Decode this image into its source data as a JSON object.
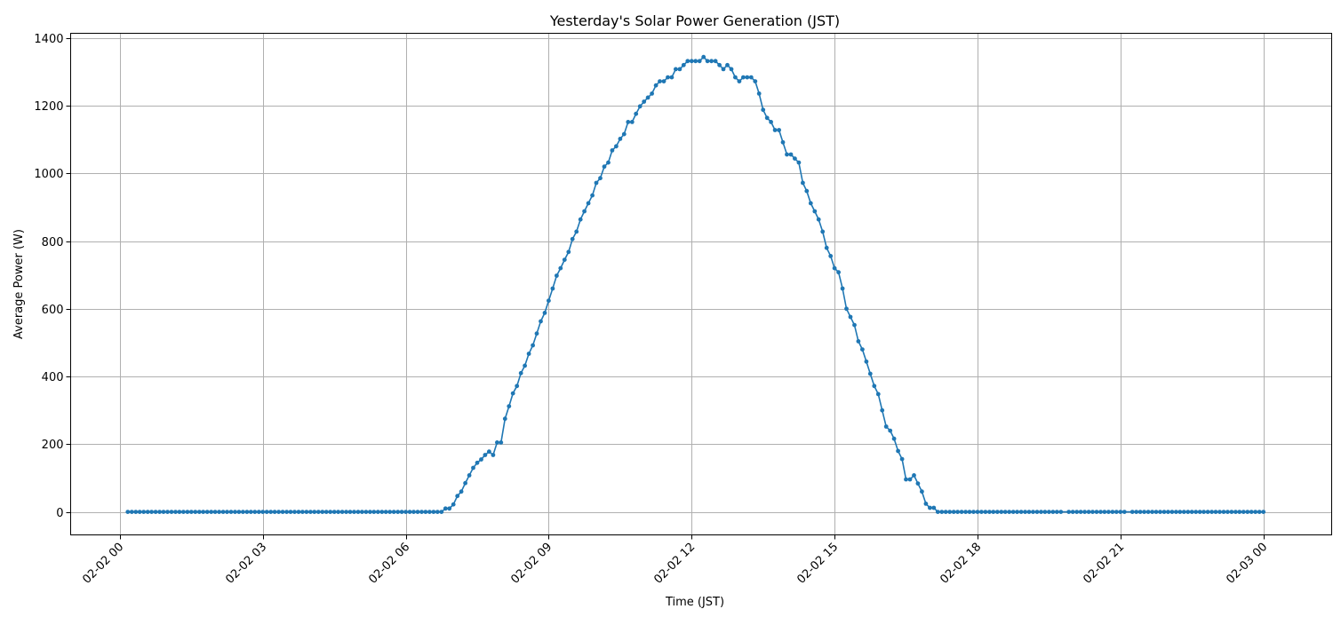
{
  "chart_data": {
    "type": "line",
    "title": "Yesterday's Solar Power Generation (JST)",
    "xlabel": "Time (JST)",
    "ylabel": "Average Power (W)",
    "xlim": [
      "02-01 22:58",
      "02-03 01:26"
    ],
    "ylim": [
      -68,
      1414
    ],
    "grid": true,
    "line_color": "#1f77b4",
    "marker": "circle",
    "x_ticks": [
      "02-02 00",
      "02-02 03",
      "02-02 06",
      "02-02 09",
      "02-02 12",
      "02-02 15",
      "02-02 18",
      "02-02 21",
      "02-03 00"
    ],
    "y_ticks": [
      0,
      200,
      400,
      600,
      800,
      1000,
      1200,
      1400
    ],
    "x": [
      "02-02 00:10",
      "02-02 00:15",
      "02-02 00:20",
      "02-02 00:25",
      "02-02 00:30",
      "02-02 00:35",
      "02-02 00:40",
      "02-02 00:45",
      "02-02 00:50",
      "02-02 00:55",
      "02-02 01:00",
      "02-02 01:05",
      "02-02 01:10",
      "02-02 01:15",
      "02-02 01:20",
      "02-02 01:25",
      "02-02 01:30",
      "02-02 01:35",
      "02-02 01:40",
      "02-02 01:45",
      "02-02 01:50",
      "02-02 01:55",
      "02-02 02:00",
      "02-02 02:05",
      "02-02 02:10",
      "02-02 02:15",
      "02-02 02:20",
      "02-02 02:25",
      "02-02 02:30",
      "02-02 02:35",
      "02-02 02:40",
      "02-02 02:45",
      "02-02 02:50",
      "02-02 02:55",
      "02-02 03:00",
      "02-02 03:05",
      "02-02 03:10",
      "02-02 03:15",
      "02-02 03:20",
      "02-02 03:25",
      "02-02 03:30",
      "02-02 03:35",
      "02-02 03:40",
      "02-02 03:45",
      "02-02 03:50",
      "02-02 03:55",
      "02-02 04:00",
      "02-02 04:05",
      "02-02 04:10",
      "02-02 04:15",
      "02-02 04:20",
      "02-02 04:25",
      "02-02 04:30",
      "02-02 04:35",
      "02-02 04:40",
      "02-02 04:45",
      "02-02 04:50",
      "02-02 04:55",
      "02-02 05:00",
      "02-02 05:05",
      "02-02 05:10",
      "02-02 05:15",
      "02-02 05:20",
      "02-02 05:25",
      "02-02 05:30",
      "02-02 05:35",
      "02-02 05:40",
      "02-02 05:45",
      "02-02 05:50",
      "02-02 05:55",
      "02-02 06:00",
      "02-02 06:05",
      "02-02 06:10",
      "02-02 06:15",
      "02-02 06:20",
      "02-02 06:25",
      "02-02 06:30",
      "02-02 06:35",
      "02-02 06:40",
      "02-02 06:45",
      "02-02 06:50",
      "02-02 06:55",
      "02-02 07:00",
      "02-02 07:05",
      "02-02 07:10",
      "02-02 07:15",
      "02-02 07:20",
      "02-02 07:25",
      "02-02 07:30",
      "02-02 07:35",
      "02-02 07:40",
      "02-02 07:45",
      "02-02 07:50",
      "02-02 07:55",
      "02-02 08:00",
      "02-02 08:05",
      "02-02 08:10",
      "02-02 08:15",
      "02-02 08:20",
      "02-02 08:25",
      "02-02 08:30",
      "02-02 08:35",
      "02-02 08:40",
      "02-02 08:45",
      "02-02 08:50",
      "02-02 08:55",
      "02-02 09:00",
      "02-02 09:05",
      "02-02 09:10",
      "02-02 09:15",
      "02-02 09:20",
      "02-02 09:25",
      "02-02 09:30",
      "02-02 09:35",
      "02-02 09:40",
      "02-02 09:45",
      "02-02 09:50",
      "02-02 09:55",
      "02-02 10:00",
      "02-02 10:05",
      "02-02 10:10",
      "02-02 10:15",
      "02-02 10:20",
      "02-02 10:25",
      "02-02 10:30",
      "02-02 10:35",
      "02-02 10:40",
      "02-02 10:45",
      "02-02 10:50",
      "02-02 10:55",
      "02-02 11:00",
      "02-02 11:05",
      "02-02 11:10",
      "02-02 11:15",
      "02-02 11:20",
      "02-02 11:25",
      "02-02 11:30",
      "02-02 11:35",
      "02-02 11:40",
      "02-02 11:45",
      "02-02 11:50",
      "02-02 11:55",
      "02-02 12:00",
      "02-02 12:05",
      "02-02 12:10",
      "02-02 12:15",
      "02-02 12:20",
      "02-02 12:25",
      "02-02 12:30",
      "02-02 12:35",
      "02-02 12:40",
      "02-02 12:45",
      "02-02 12:50",
      "02-02 12:55",
      "02-02 13:00",
      "02-02 13:05",
      "02-02 13:10",
      "02-02 13:15",
      "02-02 13:20",
      "02-02 13:25",
      "02-02 13:30",
      "02-02 13:35",
      "02-02 13:40",
      "02-02 13:45",
      "02-02 13:50",
      "02-02 13:55",
      "02-02 14:00",
      "02-02 14:05",
      "02-02 14:10",
      "02-02 14:15",
      "02-02 14:20",
      "02-02 14:25",
      "02-02 14:30",
      "02-02 14:35",
      "02-02 14:40",
      "02-02 14:45",
      "02-02 14:50",
      "02-02 14:55",
      "02-02 15:00",
      "02-02 15:05",
      "02-02 15:10",
      "02-02 15:15",
      "02-02 15:20",
      "02-02 15:25",
      "02-02 15:30",
      "02-02 15:35",
      "02-02 15:40",
      "02-02 15:45",
      "02-02 15:50",
      "02-02 15:55",
      "02-02 16:00",
      "02-02 16:05",
      "02-02 16:10",
      "02-02 16:15",
      "02-02 16:20",
      "02-02 16:25",
      "02-02 16:30",
      "02-02 16:35",
      "02-02 16:40",
      "02-02 16:45",
      "02-02 16:50",
      "02-02 16:55",
      "02-02 17:00",
      "02-02 17:05",
      "02-02 17:10",
      "02-02 17:15",
      "02-02 17:20",
      "02-02 17:25",
      "02-02 17:30",
      "02-02 17:35",
      "02-02 17:40",
      "02-02 17:45",
      "02-02 17:50",
      "02-02 17:55",
      "02-02 18:00",
      "02-02 18:05",
      "02-02 18:10",
      "02-02 18:15",
      "02-02 18:20",
      "02-02 18:25",
      "02-02 18:30",
      "02-02 18:35",
      "02-02 18:40",
      "02-02 18:45",
      "02-02 18:50",
      "02-02 18:55",
      "02-02 19:00",
      "02-02 19:05",
      "02-02 19:10",
      "02-02 19:15",
      "02-02 19:20",
      "02-02 19:25",
      "02-02 19:30",
      "02-02 19:35",
      "02-02 19:40",
      "02-02 19:45",
      "02-02 19:55",
      "02-02 20:00",
      "02-02 20:05",
      "02-02 20:10",
      "02-02 20:15",
      "02-02 20:20",
      "02-02 20:25",
      "02-02 20:30",
      "02-02 20:35",
      "02-02 20:40",
      "02-02 20:45",
      "02-02 20:50",
      "02-02 20:55",
      "02-02 21:00",
      "02-02 21:05",
      "02-02 21:15",
      "02-02 21:20",
      "02-02 21:25",
      "02-02 21:30",
      "02-02 21:35",
      "02-02 21:40",
      "02-02 21:45",
      "02-02 21:50",
      "02-02 21:55",
      "02-02 22:00",
      "02-02 22:05",
      "02-02 22:10",
      "02-02 22:15",
      "02-02 22:20",
      "02-02 22:25",
      "02-02 22:30",
      "02-02 22:35",
      "02-02 22:40",
      "02-02 22:45",
      "02-02 22:50",
      "02-02 22:55",
      "02-02 23:00",
      "02-02 23:05",
      "02-02 23:10",
      "02-02 23:15",
      "02-02 23:20",
      "02-02 23:25",
      "02-02 23:30",
      "02-02 23:35",
      "02-02 23:40",
      "02-02 23:45",
      "02-02 23:50",
      "02-02 23:55",
      "02-03 00:00"
    ],
    "values": [
      0,
      0,
      0,
      0,
      0,
      0,
      0,
      0,
      0,
      0,
      0,
      0,
      0,
      0,
      0,
      0,
      0,
      0,
      0,
      0,
      0,
      0,
      0,
      0,
      0,
      0,
      0,
      0,
      0,
      0,
      0,
      0,
      0,
      0,
      0,
      0,
      0,
      0,
      0,
      0,
      0,
      0,
      0,
      0,
      0,
      0,
      0,
      0,
      0,
      0,
      0,
      0,
      0,
      0,
      0,
      0,
      0,
      0,
      0,
      0,
      0,
      0,
      0,
      0,
      0,
      0,
      0,
      0,
      0,
      0,
      0,
      0,
      0,
      0,
      0,
      0,
      0,
      0,
      0,
      0,
      10,
      10,
      22,
      47,
      60,
      85,
      108,
      130,
      145,
      155,
      168,
      178,
      168,
      205,
      205,
      275,
      312,
      350,
      372,
      410,
      432,
      467,
      492,
      527,
      563,
      588,
      624,
      660,
      698,
      720,
      745,
      768,
      806,
      828,
      864,
      888,
      912,
      935,
      972,
      986,
      1020,
      1032,
      1068,
      1080,
      1102,
      1116,
      1152,
      1152,
      1176,
      1198,
      1212,
      1224,
      1236,
      1260,
      1272,
      1272,
      1284,
      1284,
      1308,
      1308,
      1320,
      1332,
      1332,
      1332,
      1332,
      1344,
      1332,
      1332,
      1332,
      1320,
      1308,
      1320,
      1308,
      1284,
      1272,
      1284,
      1284,
      1284,
      1272,
      1236,
      1188,
      1164,
      1152,
      1128,
      1128,
      1092,
      1056,
      1056,
      1044,
      1032,
      972,
      948,
      912,
      888,
      864,
      828,
      780,
      756,
      720,
      708,
      660,
      600,
      576,
      552,
      504,
      480,
      444,
      408,
      372,
      348,
      300,
      252,
      240,
      216,
      180,
      156,
      96,
      96,
      108,
      84,
      60,
      24,
      12,
      12,
      0,
      0,
      0,
      0,
      0,
      0,
      0,
      0,
      0,
      0,
      0,
      0,
      0,
      0,
      0,
      0,
      0,
      0,
      0,
      0,
      0,
      0,
      0,
      0,
      0,
      0,
      0,
      0,
      0,
      0,
      0,
      0,
      0,
      0,
      0,
      0,
      0,
      0,
      0,
      0,
      0,
      0,
      0,
      0,
      0,
      0,
      0,
      0,
      0,
      0,
      0,
      0,
      0,
      0,
      0,
      0,
      0,
      0,
      0,
      0,
      0,
      0,
      0,
      0,
      0,
      0,
      0,
      0,
      0,
      0,
      0,
      0,
      0,
      0,
      0,
      0,
      0,
      0,
      0,
      0,
      0
    ]
  }
}
